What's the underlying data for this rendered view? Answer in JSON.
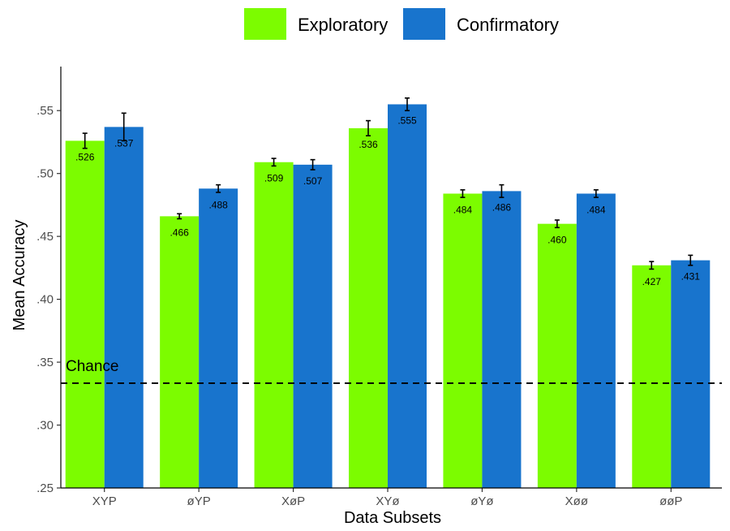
{
  "chart_data": {
    "type": "bar",
    "xlabel": "Data Subsets",
    "ylabel": "Mean Accuracy",
    "ylim": [
      0.25,
      0.585
    ],
    "yticks": [
      ".25",
      ".30",
      ".35",
      ".40",
      ".45",
      ".50",
      ".55"
    ],
    "ytick_values": [
      0.25,
      0.3,
      0.35,
      0.4,
      0.45,
      0.5,
      0.55
    ],
    "categories": [
      "XYP",
      "øYP",
      "XøP",
      "XYø",
      "øYø",
      "Xøø",
      "øøP"
    ],
    "legend_position": "top",
    "grid": false,
    "series": [
      {
        "name": "Exploratory",
        "color": "#7cfc00",
        "values": [
          0.526,
          0.466,
          0.509,
          0.536,
          0.484,
          0.46,
          0.427
        ],
        "labels": [
          ".526",
          ".466",
          ".509",
          ".536",
          ".484",
          ".460",
          ".427"
        ],
        "error": [
          0.006,
          0.002,
          0.003,
          0.006,
          0.003,
          0.003,
          0.003
        ]
      },
      {
        "name": "Confirmatory",
        "color": "#1874cd",
        "values": [
          0.537,
          0.488,
          0.507,
          0.555,
          0.486,
          0.484,
          0.431
        ],
        "labels": [
          ".537",
          ".488",
          ".507",
          ".555",
          ".486",
          ".484",
          ".431"
        ],
        "error": [
          0.011,
          0.003,
          0.004,
          0.005,
          0.005,
          0.003,
          0.004
        ]
      }
    ],
    "reference_line": {
      "value": 0.3333,
      "label": "Chance",
      "style": "dashed"
    }
  }
}
